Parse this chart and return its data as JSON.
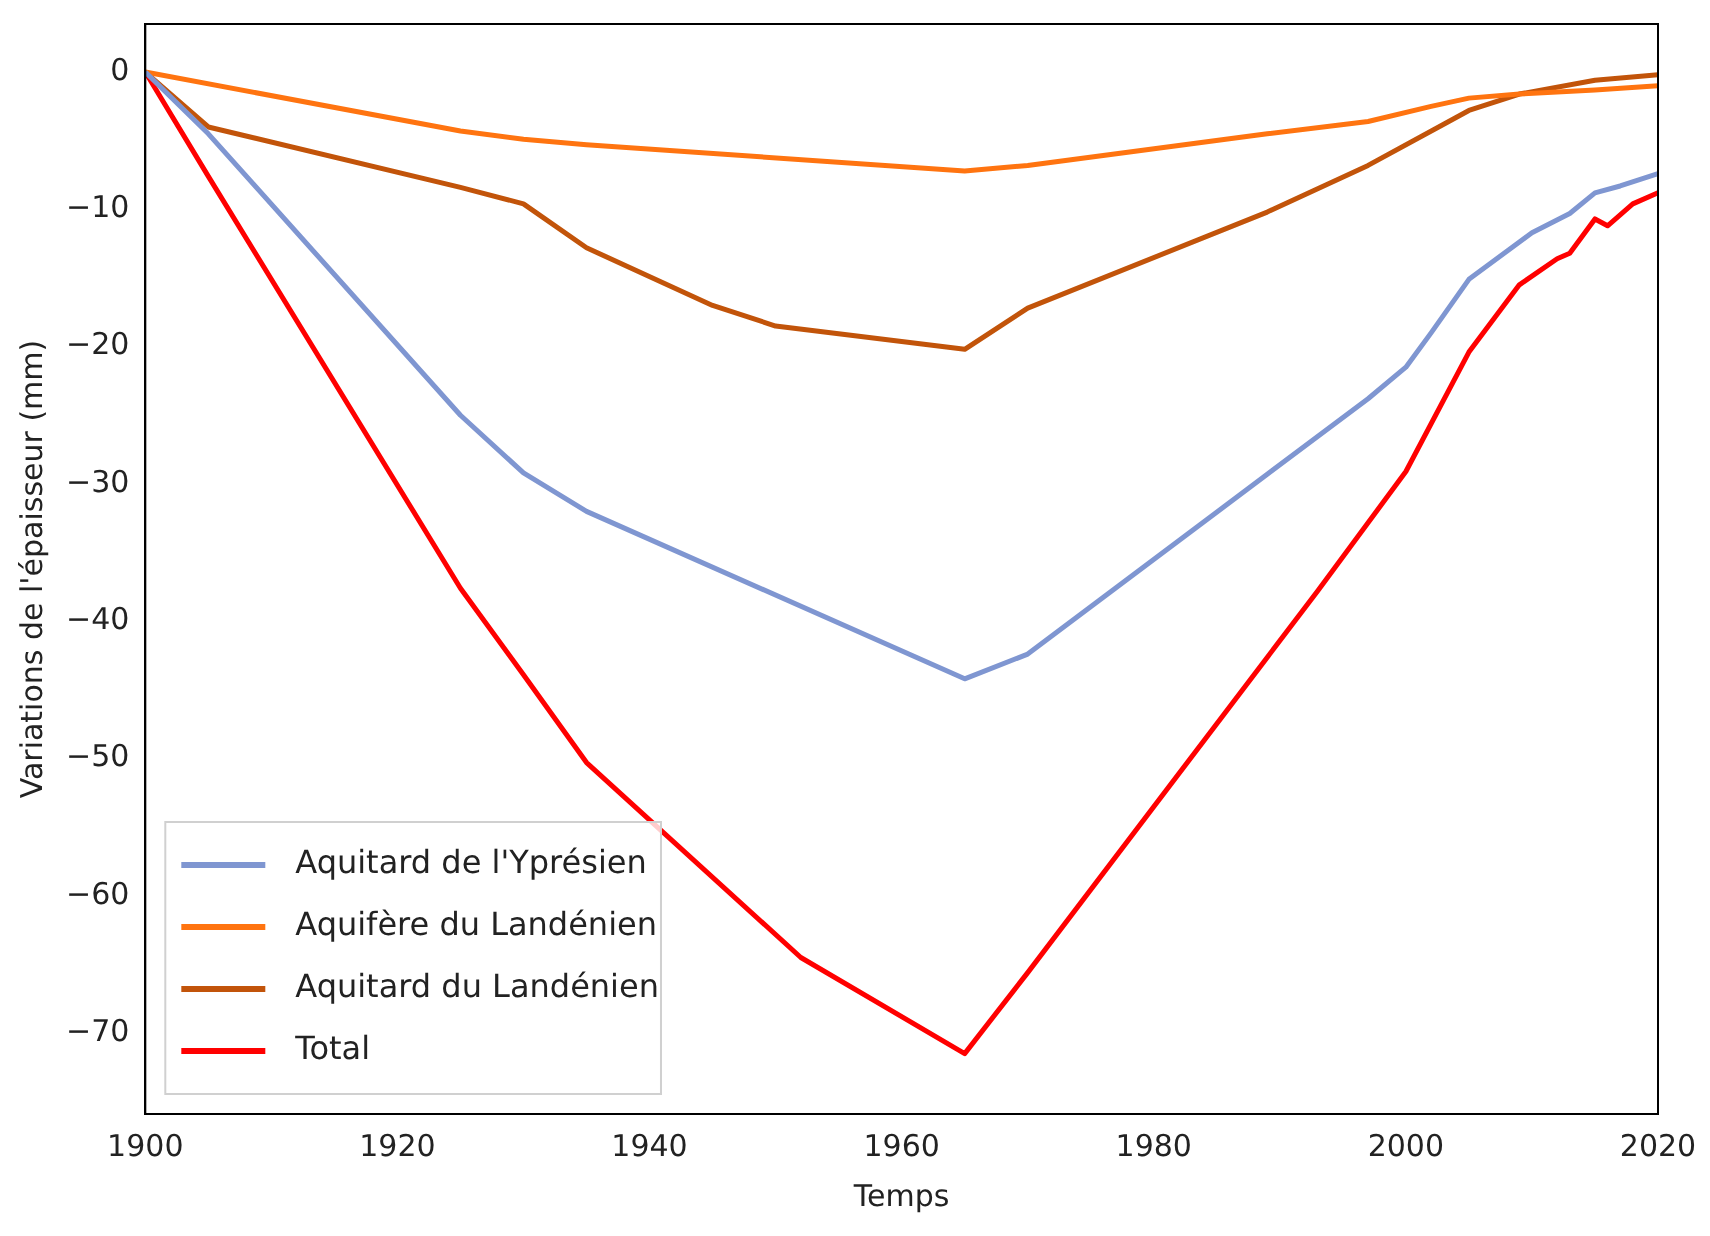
{
  "chart_data": {
    "type": "line",
    "xlabel": "Temps",
    "ylabel": "Variations de l'épaisseur (mm)",
    "xlim": [
      1900,
      2020
    ],
    "xticks": [
      1900,
      1920,
      1940,
      1960,
      1980,
      2000,
      2020
    ],
    "ylim": [
      -75.9,
      3.5
    ],
    "yticks": [
      -70,
      -60,
      -50,
      -40,
      -30,
      -20,
      -10,
      0
    ],
    "legend": "bottom left",
    "grid": false,
    "series": [
      {
        "name": "Aquitard de l'Yprésien",
        "color": "#7f96d1",
        "x": [
          1900,
          1905,
          1925,
          1930,
          1935,
          1965,
          1970,
          1989,
          1997,
          2000,
          2002,
          2005,
          2010,
          2013,
          2015,
          2017,
          2020
        ],
        "values": [
          0,
          -4.5,
          -25,
          -29.2,
          -32,
          -44.2,
          -42.4,
          -29.3,
          -23.8,
          -21.5,
          -19,
          -15.1,
          -11.7,
          -10.3,
          -8.8,
          -8.3,
          -7.4
        ]
      },
      {
        "name": "Aquifère du Landénien",
        "color": "#ff7410",
        "x": [
          1900,
          1925,
          1930,
          1935,
          1965,
          1970,
          1989,
          1997,
          2002,
          2005,
          2009,
          2015,
          2020
        ],
        "values": [
          0,
          -4.3,
          -4.9,
          -5.3,
          -7.2,
          -6.8,
          -4.5,
          -3.6,
          -2.5,
          -1.9,
          -1.6,
          -1.3,
          -1.0
        ]
      },
      {
        "name": "Aquitard du Landénien",
        "color": "#c2540a",
        "x": [
          1900,
          1905,
          1925,
          1930,
          1935,
          1945,
          1950,
          1965,
          1970,
          1989,
          1997,
          2003,
          2005,
          2009,
          2015,
          2020
        ],
        "values": [
          0,
          -4,
          -8.4,
          -9.6,
          -12.8,
          -17,
          -18.5,
          -20.2,
          -17.2,
          -10.2,
          -6.8,
          -3.8,
          -2.8,
          -1.6,
          -0.6,
          -0.2
        ]
      },
      {
        "name": "Total",
        "color": "#ff0000",
        "x": [
          1900,
          1905,
          1925,
          1930,
          1935,
          1952,
          1965,
          1970,
          1993,
          2000,
          2005,
          2009,
          2012,
          2013,
          2015,
          2016,
          2018,
          2020
        ],
        "values": [
          0,
          -7.6,
          -37.6,
          -43.9,
          -50.3,
          -64.5,
          -71.5,
          -65.6,
          -37.8,
          -29.1,
          -20.4,
          -15.5,
          -13.6,
          -13.2,
          -10.7,
          -11.2,
          -9.6,
          -8.8
        ]
      }
    ]
  }
}
